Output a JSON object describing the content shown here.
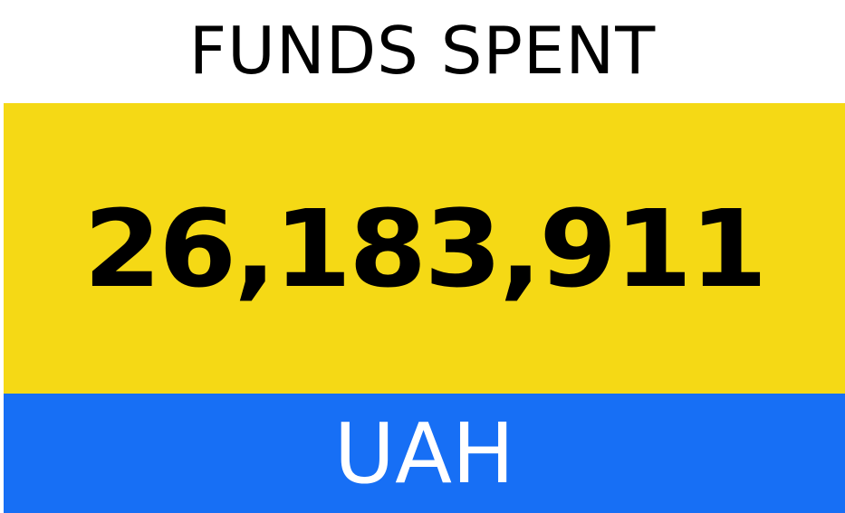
{
  "title": "FUNDS SPENT",
  "amount": "26,183,911",
  "currency": "UAH"
}
